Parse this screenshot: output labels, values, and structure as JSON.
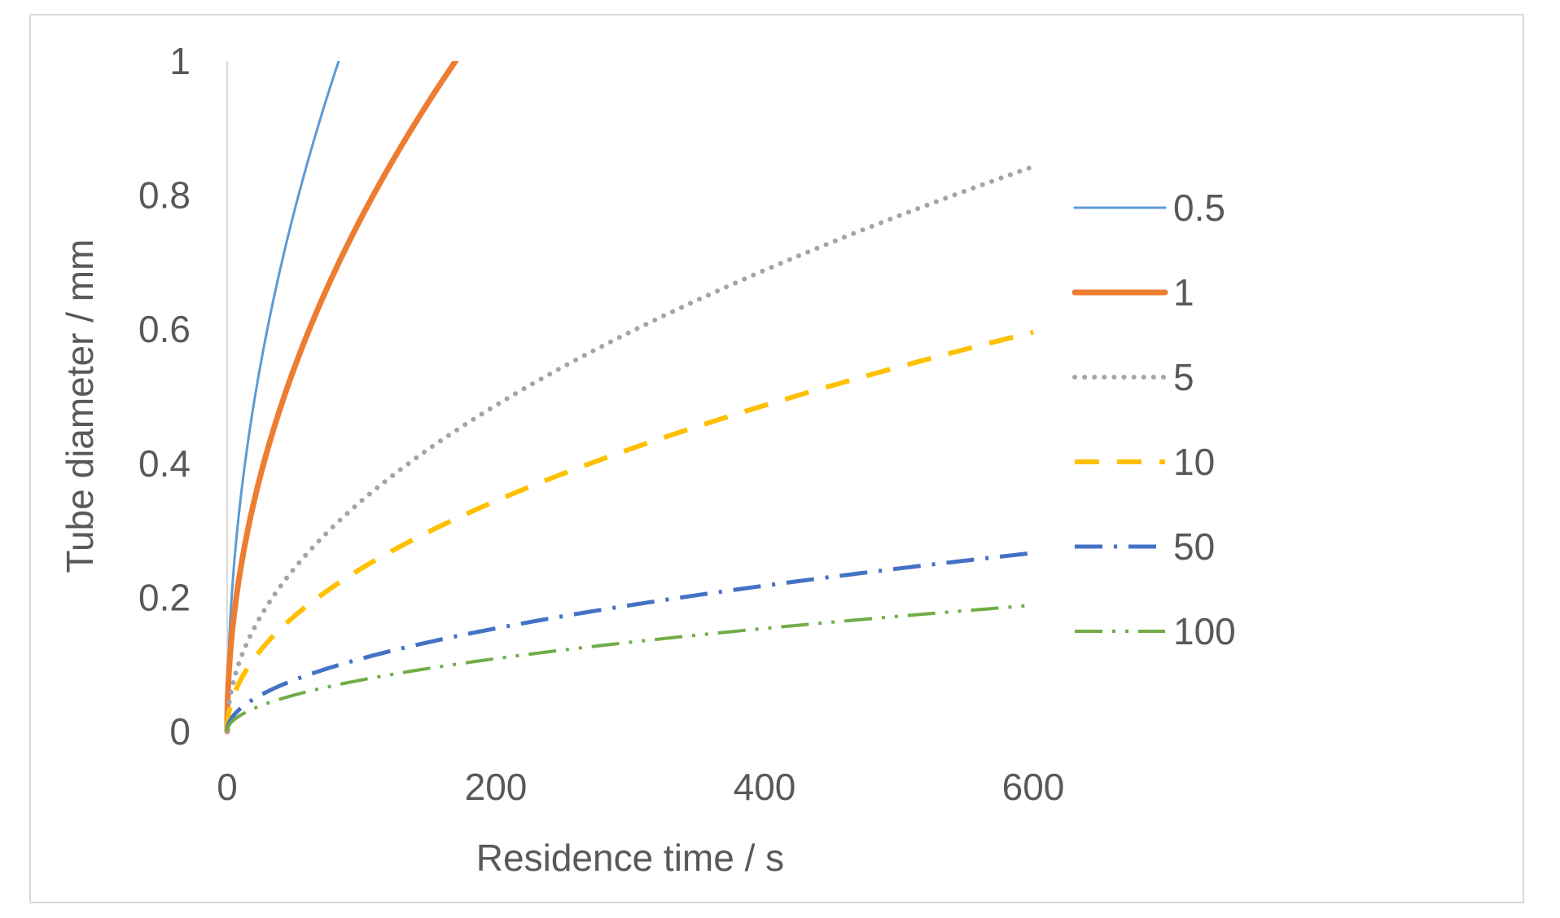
{
  "chart_data": {
    "type": "line",
    "title": "",
    "xlabel": "Residence time / s",
    "ylabel": "Tube diameter / mm",
    "xlim": [
      0,
      600
    ],
    "ylim": [
      0,
      1
    ],
    "xticks": [
      0,
      200,
      400,
      600
    ],
    "xtick_labels": [
      "0",
      "200",
      "400",
      "600"
    ],
    "yticks": [
      0,
      0.2,
      0.4,
      0.6,
      0.8,
      1
    ],
    "ytick_labels": [
      "0",
      "0.2",
      "0.4",
      "0.6",
      "0.8",
      "1"
    ],
    "grid": false,
    "legend_position": "right",
    "series": [
      {
        "name": "0.5",
        "color": "#5b9bd5",
        "style": "solid",
        "x": [
          0,
          5,
          10,
          20,
          40,
          60,
          83
        ],
        "y": [
          0,
          0.245,
          0.347,
          0.491,
          0.694,
          0.85,
          1.0
        ]
      },
      {
        "name": "1",
        "color": "#ed7d31",
        "style": "solid-thick",
        "x": [
          0,
          5,
          10,
          20,
          40,
          80,
          120,
          170
        ],
        "y": [
          0,
          0.172,
          0.243,
          0.343,
          0.485,
          0.686,
          0.84,
          1.0
        ]
      },
      {
        "name": "5",
        "color": "#a5a5a5",
        "style": "dotted",
        "x": [
          0,
          5,
          10,
          25,
          50,
          100,
          150,
          200,
          300,
          400,
          500,
          600
        ],
        "y": [
          0,
          0.077,
          0.109,
          0.172,
          0.243,
          0.344,
          0.421,
          0.486,
          0.596,
          0.688,
          0.769,
          0.843
        ]
      },
      {
        "name": "10",
        "color": "#ffc000",
        "style": "dashed",
        "x": [
          0,
          5,
          10,
          25,
          50,
          100,
          150,
          200,
          300,
          400,
          500,
          600
        ],
        "y": [
          0,
          0.054,
          0.077,
          0.121,
          0.172,
          0.243,
          0.298,
          0.344,
          0.421,
          0.486,
          0.544,
          0.596
        ]
      },
      {
        "name": "50",
        "color": "#4472c4",
        "style": "dash-dot",
        "x": [
          0,
          5,
          10,
          25,
          50,
          100,
          150,
          200,
          300,
          400,
          500,
          600
        ],
        "y": [
          0,
          0.024,
          0.034,
          0.054,
          0.077,
          0.109,
          0.133,
          0.154,
          0.188,
          0.217,
          0.243,
          0.267
        ]
      },
      {
        "name": "100",
        "color": "#70ad47",
        "style": "dash-dot-dot",
        "x": [
          0,
          5,
          10,
          25,
          50,
          100,
          150,
          200,
          300,
          400,
          500,
          600
        ],
        "y": [
          0,
          0.017,
          0.024,
          0.038,
          0.054,
          0.077,
          0.094,
          0.109,
          0.133,
          0.154,
          0.172,
          0.188
        ]
      }
    ]
  }
}
